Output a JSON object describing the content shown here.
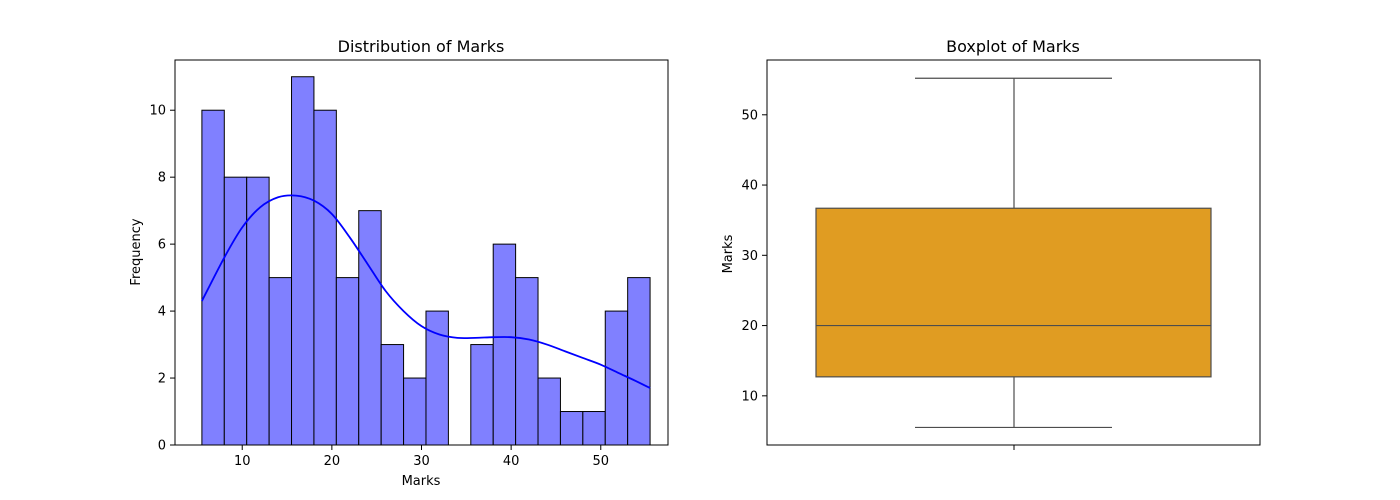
{
  "chart_data": [
    {
      "type": "bar",
      "title": "Distribution of Marks",
      "xlabel": "Marks",
      "ylabel": "Frequency",
      "xlim": [
        2.5,
        57.5
      ],
      "ylim": [
        0,
        11.5
      ],
      "xticks": [
        10,
        20,
        30,
        40,
        50
      ],
      "yticks": [
        0,
        2,
        4,
        6,
        8,
        10
      ],
      "bins": [
        {
          "x0": 5.5,
          "x1": 8.0,
          "count": 10
        },
        {
          "x0": 8.0,
          "x1": 10.5,
          "count": 8
        },
        {
          "x0": 10.5,
          "x1": 13.0,
          "count": 8
        },
        {
          "x0": 13.0,
          "x1": 15.5,
          "count": 5
        },
        {
          "x0": 15.5,
          "x1": 18.0,
          "count": 11
        },
        {
          "x0": 18.0,
          "x1": 20.5,
          "count": 10
        },
        {
          "x0": 20.5,
          "x1": 23.0,
          "count": 5
        },
        {
          "x0": 23.0,
          "x1": 25.5,
          "count": 7
        },
        {
          "x0": 25.5,
          "x1": 28.0,
          "count": 3
        },
        {
          "x0": 28.0,
          "x1": 30.5,
          "count": 2
        },
        {
          "x0": 30.5,
          "x1": 33.0,
          "count": 4
        },
        {
          "x0": 33.0,
          "x1": 35.5,
          "count": 0
        },
        {
          "x0": 35.5,
          "x1": 38.0,
          "count": 3
        },
        {
          "x0": 38.0,
          "x1": 40.5,
          "count": 6
        },
        {
          "x0": 40.5,
          "x1": 43.0,
          "count": 5
        },
        {
          "x0": 43.0,
          "x1": 45.5,
          "count": 2
        },
        {
          "x0": 45.5,
          "x1": 48.0,
          "count": 1
        },
        {
          "x0": 48.0,
          "x1": 50.5,
          "count": 1
        },
        {
          "x0": 50.5,
          "x1": 53.0,
          "count": 4
        },
        {
          "x0": 53.0,
          "x1": 55.5,
          "count": 5
        }
      ],
      "kde": {
        "x": [
          5.5,
          8,
          10,
          12,
          14,
          16,
          18,
          20,
          22,
          24,
          26,
          28,
          30,
          32,
          34,
          36,
          38,
          40,
          42,
          44,
          46,
          48,
          50,
          52,
          54,
          55.5
        ],
        "y": [
          4.3,
          5.6,
          6.5,
          7.1,
          7.4,
          7.45,
          7.3,
          6.9,
          6.2,
          5.4,
          4.6,
          4.0,
          3.55,
          3.3,
          3.2,
          3.2,
          3.22,
          3.22,
          3.15,
          3.0,
          2.8,
          2.6,
          2.4,
          2.15,
          1.9,
          1.7
        ]
      },
      "bar_color": "#8080ff",
      "bar_edge_color": "#000000",
      "kde_color": "#0000ff",
      "grid": false
    },
    {
      "type": "box",
      "title": "Boxplot of Marks",
      "ylabel": "Marks",
      "ylim": [
        3.0,
        57.8
      ],
      "yticks": [
        10,
        20,
        30,
        40,
        50
      ],
      "stats": {
        "whisker_low": 5.5,
        "q1": 12.7,
        "median": 20.0,
        "q3": 36.7,
        "whisker_high": 55.2
      },
      "box_color": "#e09c22",
      "line_color": "#4d4d4d",
      "grid": false
    }
  ]
}
